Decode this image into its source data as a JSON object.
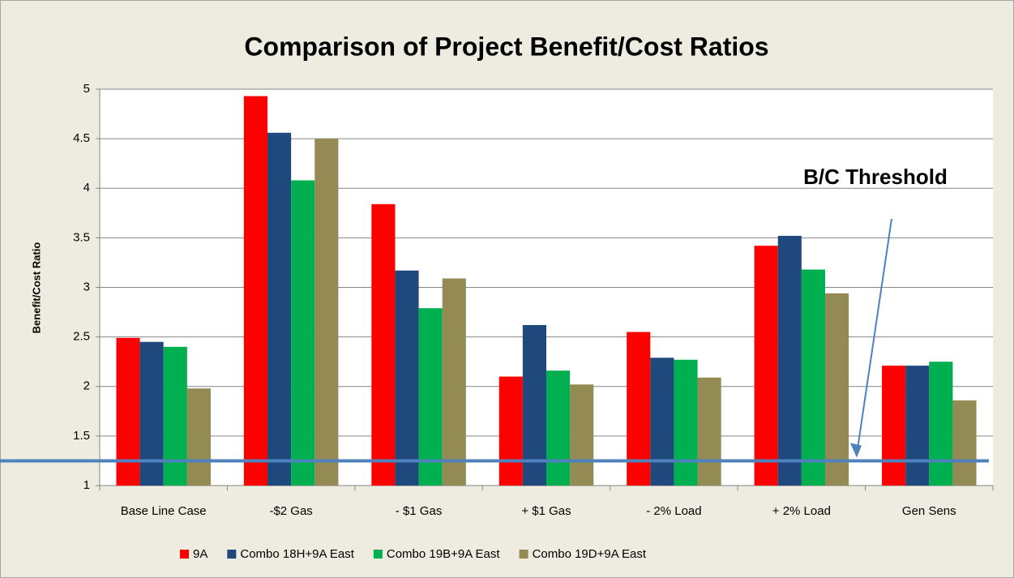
{
  "chart_data": {
    "type": "bar",
    "title": "Comparison of Project Benefit/Cost Ratios",
    "y_label": "Benefit/Cost Ratio",
    "categories": [
      "Base Line Case",
      "-$2 Gas",
      "- $1 Gas",
      "+ $1 Gas",
      "- 2% Load",
      "+ 2% Load",
      "Gen Sens"
    ],
    "series": [
      {
        "name": "9A",
        "color": "#ff0000",
        "values": [
          2.49,
          4.93,
          3.84,
          2.1,
          2.55,
          3.42,
          2.21
        ]
      },
      {
        "name": "Combo 18H+9A East",
        "color": "#1f497d",
        "values": [
          2.45,
          4.56,
          3.17,
          2.62,
          2.29,
          3.52,
          2.21
        ]
      },
      {
        "name": "Combo 19B+9A East",
        "color": "#00b050",
        "values": [
          2.4,
          4.08,
          2.79,
          2.16,
          2.27,
          3.18,
          2.25
        ]
      },
      {
        "name": "Combo 19D+9A East",
        "color": "#948a54",
        "values": [
          1.98,
          4.5,
          3.09,
          2.02,
          2.09,
          2.94,
          1.86
        ]
      }
    ],
    "threshold": {
      "label": "B/C Threshold",
      "value": 1.25,
      "color": "#4f81bd"
    },
    "ylim": [
      1,
      5
    ],
    "yticks": [
      1,
      1.5,
      2,
      2.5,
      3,
      3.5,
      4,
      4.5,
      5
    ],
    "grid": true,
    "legend": "bottom"
  }
}
